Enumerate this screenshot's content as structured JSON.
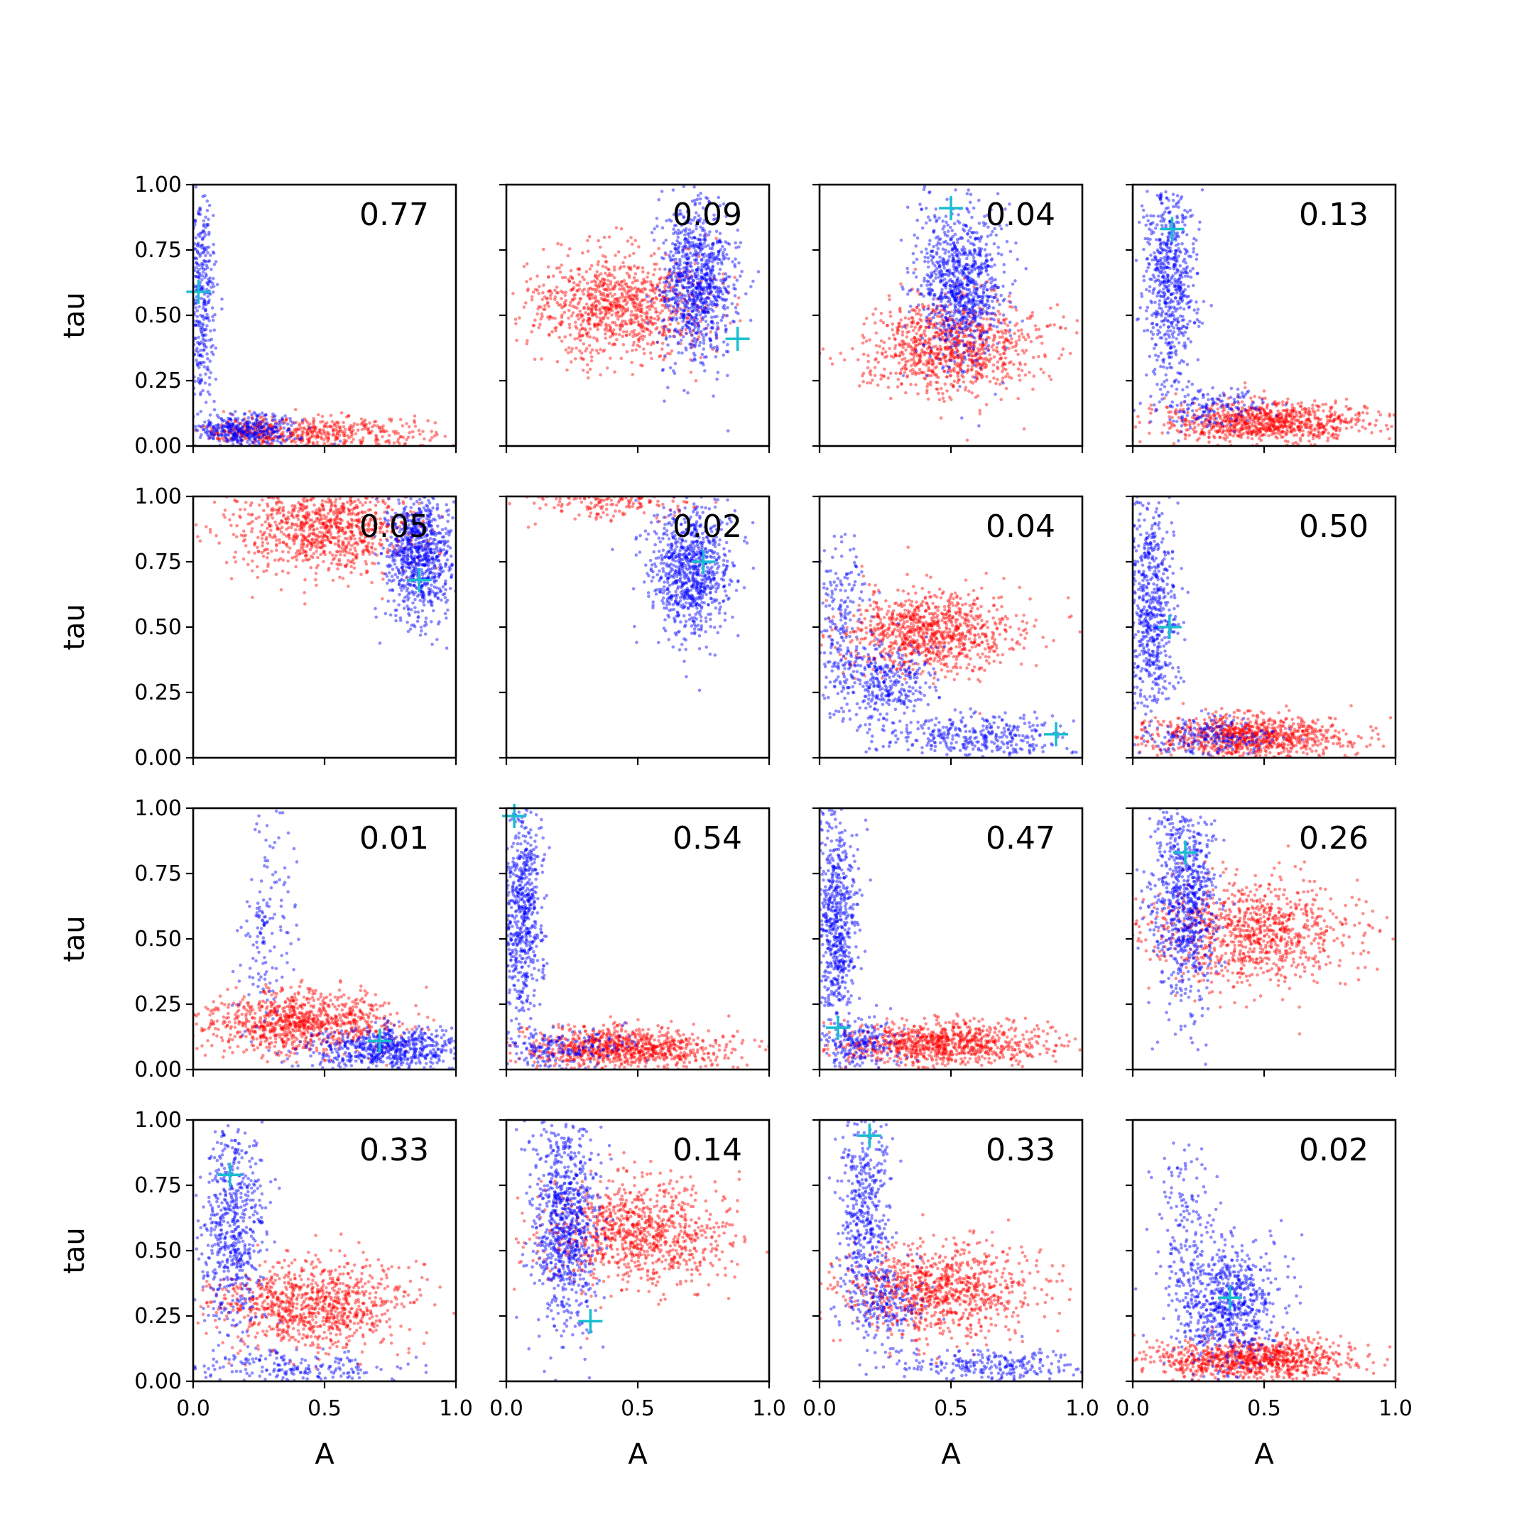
{
  "figure": {
    "colors": {
      "series_red": "#ff0000",
      "series_blue": "#0000ff",
      "marker": "#17becf",
      "frame": "#000000"
    }
  },
  "chart_data": [
    {
      "type": "scatter",
      "row": 0,
      "col": 0,
      "value_label": "0.77",
      "xlabel": "",
      "ylabel": "tau",
      "xlim": [
        0,
        1
      ],
      "ylim": [
        0,
        1
      ],
      "x_ticks": [],
      "y_ticks": [
        "0.00",
        "0.25",
        "0.50",
        "0.75",
        "1.00"
      ],
      "marker": [
        0.02,
        0.59
      ],
      "series": [
        {
          "color": "red",
          "clusters": [
            {
              "cx": 0.5,
              "cy": 0.05,
              "sx": 0.2,
              "sy": 0.03,
              "n": 420
            },
            {
              "cx": 0.2,
              "cy": 0.06,
              "sx": 0.08,
              "sy": 0.03,
              "n": 150
            }
          ]
        },
        {
          "color": "blue",
          "clusters": [
            {
              "cx": 0.03,
              "cy": 0.55,
              "sx": 0.03,
              "sy": 0.22,
              "n": 380
            },
            {
              "cx": 0.2,
              "cy": 0.06,
              "sx": 0.1,
              "sy": 0.03,
              "n": 380
            }
          ]
        }
      ]
    },
    {
      "type": "scatter",
      "row": 0,
      "col": 1,
      "value_label": "0.09",
      "xlabel": "",
      "ylabel": "",
      "xlim": [
        0,
        1
      ],
      "ylim": [
        0,
        1
      ],
      "x_ticks": [],
      "y_ticks": [],
      "marker": [
        0.88,
        0.41
      ],
      "series": [
        {
          "color": "red",
          "clusters": [
            {
              "cx": 0.42,
              "cy": 0.54,
              "sx": 0.17,
              "sy": 0.1,
              "n": 950
            }
          ]
        },
        {
          "color": "blue",
          "clusters": [
            {
              "cx": 0.72,
              "cy": 0.62,
              "sx": 0.07,
              "sy": 0.15,
              "n": 900
            }
          ]
        }
      ]
    },
    {
      "type": "scatter",
      "row": 0,
      "col": 2,
      "value_label": "0.04",
      "xlabel": "",
      "ylabel": "",
      "xlim": [
        0,
        1
      ],
      "ylim": [
        0,
        1
      ],
      "x_ticks": [],
      "y_ticks": [],
      "marker": [
        0.5,
        0.91
      ],
      "series": [
        {
          "color": "red",
          "clusters": [
            {
              "cx": 0.5,
              "cy": 0.38,
              "sx": 0.16,
              "sy": 0.09,
              "n": 950
            }
          ]
        },
        {
          "color": "blue",
          "clusters": [
            {
              "cx": 0.53,
              "cy": 0.62,
              "sx": 0.08,
              "sy": 0.15,
              "n": 900
            }
          ]
        }
      ]
    },
    {
      "type": "scatter",
      "row": 0,
      "col": 3,
      "value_label": "0.13",
      "xlabel": "",
      "ylabel": "",
      "xlim": [
        0,
        1
      ],
      "ylim": [
        0,
        1
      ],
      "x_ticks": [],
      "y_ticks": [],
      "marker": [
        0.15,
        0.83
      ],
      "series": [
        {
          "color": "red",
          "clusters": [
            {
              "cx": 0.5,
              "cy": 0.09,
              "sx": 0.2,
              "sy": 0.04,
              "n": 900
            }
          ]
        },
        {
          "color": "blue",
          "clusters": [
            {
              "cx": 0.14,
              "cy": 0.62,
              "sx": 0.05,
              "sy": 0.2,
              "n": 650
            },
            {
              "cx": 0.3,
              "cy": 0.15,
              "sx": 0.1,
              "sy": 0.04,
              "n": 150
            }
          ]
        }
      ]
    },
    {
      "type": "scatter",
      "row": 1,
      "col": 0,
      "value_label": "0.05",
      "xlabel": "",
      "ylabel": "tau",
      "xlim": [
        0,
        1
      ],
      "ylim": [
        0,
        1
      ],
      "x_ticks": [],
      "y_ticks": [
        "0.00",
        "0.25",
        "0.50",
        "0.75",
        "1.00"
      ],
      "marker": [
        0.86,
        0.68
      ],
      "series": [
        {
          "color": "red",
          "clusters": [
            {
              "cx": 0.5,
              "cy": 0.88,
              "sx": 0.17,
              "sy": 0.09,
              "n": 950
            }
          ]
        },
        {
          "color": "blue",
          "clusters": [
            {
              "cx": 0.86,
              "cy": 0.78,
              "sx": 0.06,
              "sy": 0.13,
              "n": 850
            }
          ]
        }
      ]
    },
    {
      "type": "scatter",
      "row": 1,
      "col": 1,
      "value_label": "0.02",
      "xlabel": "",
      "ylabel": "",
      "xlim": [
        0,
        1
      ],
      "ylim": [
        0,
        1
      ],
      "x_ticks": [],
      "y_ticks": [],
      "marker": [
        0.75,
        0.75
      ],
      "series": [
        {
          "color": "red",
          "clusters": [
            {
              "cx": 0.42,
              "cy": 1.0,
              "sx": 0.16,
              "sy": 0.05,
              "n": 300
            }
          ]
        },
        {
          "color": "blue",
          "clusters": [
            {
              "cx": 0.7,
              "cy": 0.72,
              "sx": 0.08,
              "sy": 0.12,
              "n": 850
            }
          ]
        }
      ]
    },
    {
      "type": "scatter",
      "row": 1,
      "col": 2,
      "value_label": "0.04",
      "xlabel": "",
      "ylabel": "",
      "xlim": [
        0,
        1
      ],
      "ylim": [
        0,
        1
      ],
      "x_ticks": [],
      "y_ticks": [],
      "marker": [
        0.9,
        0.09
      ],
      "series": [
        {
          "color": "red",
          "clusters": [
            {
              "cx": 0.42,
              "cy": 0.48,
              "sx": 0.17,
              "sy": 0.08,
              "n": 950
            }
          ]
        },
        {
          "color": "blue",
          "clusters": [
            {
              "cx": 0.08,
              "cy": 0.5,
              "sx": 0.05,
              "sy": 0.16,
              "n": 200
            },
            {
              "cx": 0.25,
              "cy": 0.28,
              "sx": 0.09,
              "sy": 0.08,
              "n": 350
            },
            {
              "cx": 0.6,
              "cy": 0.08,
              "sx": 0.18,
              "sy": 0.04,
              "n": 350
            }
          ]
        }
      ]
    },
    {
      "type": "scatter",
      "row": 1,
      "col": 3,
      "value_label": "0.50",
      "xlabel": "",
      "ylabel": "",
      "xlim": [
        0,
        1
      ],
      "ylim": [
        0,
        1
      ],
      "x_ticks": [],
      "y_ticks": [],
      "marker": [
        0.14,
        0.5
      ],
      "series": [
        {
          "color": "red",
          "clusters": [
            {
              "cx": 0.45,
              "cy": 0.08,
              "sx": 0.2,
              "sy": 0.04,
              "n": 900
            }
          ]
        },
        {
          "color": "blue",
          "clusters": [
            {
              "cx": 0.07,
              "cy": 0.55,
              "sx": 0.05,
              "sy": 0.22,
              "n": 650
            },
            {
              "cx": 0.3,
              "cy": 0.08,
              "sx": 0.12,
              "sy": 0.04,
              "n": 200
            }
          ]
        }
      ]
    },
    {
      "type": "scatter",
      "row": 2,
      "col": 0,
      "value_label": "0.01",
      "xlabel": "",
      "ylabel": "tau",
      "xlim": [
        0,
        1
      ],
      "ylim": [
        0,
        1
      ],
      "x_ticks": [],
      "y_ticks": [
        "0.00",
        "0.25",
        "0.50",
        "0.75",
        "1.00"
      ],
      "marker": [
        0.71,
        0.11
      ],
      "series": [
        {
          "color": "red",
          "clusters": [
            {
              "cx": 0.4,
              "cy": 0.18,
              "sx": 0.18,
              "sy": 0.06,
              "n": 950
            }
          ]
        },
        {
          "color": "blue",
          "clusters": [
            {
              "cx": 0.28,
              "cy": 0.55,
              "sx": 0.06,
              "sy": 0.18,
              "n": 150
            },
            {
              "cx": 0.75,
              "cy": 0.08,
              "sx": 0.14,
              "sy": 0.04,
              "n": 650
            }
          ]
        }
      ]
    },
    {
      "type": "scatter",
      "row": 2,
      "col": 1,
      "value_label": "0.54",
      "xlabel": "",
      "ylabel": "",
      "xlim": [
        0,
        1
      ],
      "ylim": [
        0,
        1
      ],
      "x_ticks": [],
      "y_ticks": [],
      "marker": [
        0.03,
        0.97
      ],
      "series": [
        {
          "color": "red",
          "clusters": [
            {
              "cx": 0.45,
              "cy": 0.08,
              "sx": 0.2,
              "sy": 0.04,
              "n": 900
            }
          ]
        },
        {
          "color": "blue",
          "clusters": [
            {
              "cx": 0.06,
              "cy": 0.6,
              "sx": 0.04,
              "sy": 0.22,
              "n": 650
            },
            {
              "cx": 0.2,
              "cy": 0.08,
              "sx": 0.12,
              "sy": 0.04,
              "n": 200
            }
          ]
        }
      ]
    },
    {
      "type": "scatter",
      "row": 2,
      "col": 2,
      "value_label": "0.47",
      "xlabel": "",
      "ylabel": "",
      "xlim": [
        0,
        1
      ],
      "ylim": [
        0,
        1
      ],
      "x_ticks": [],
      "y_ticks": [],
      "marker": [
        0.07,
        0.16
      ],
      "series": [
        {
          "color": "red",
          "clusters": [
            {
              "cx": 0.45,
              "cy": 0.1,
              "sx": 0.2,
              "sy": 0.04,
              "n": 900
            }
          ]
        },
        {
          "color": "blue",
          "clusters": [
            {
              "cx": 0.06,
              "cy": 0.55,
              "sx": 0.04,
              "sy": 0.22,
              "n": 650
            },
            {
              "cx": 0.15,
              "cy": 0.1,
              "sx": 0.08,
              "sy": 0.05,
              "n": 200
            }
          ]
        }
      ]
    },
    {
      "type": "scatter",
      "row": 2,
      "col": 3,
      "value_label": "0.26",
      "xlabel": "",
      "ylabel": "",
      "xlim": [
        0,
        1
      ],
      "ylim": [
        0,
        1
      ],
      "x_ticks": [],
      "y_ticks": [],
      "marker": [
        0.2,
        0.83
      ],
      "series": [
        {
          "color": "red",
          "clusters": [
            {
              "cx": 0.45,
              "cy": 0.52,
              "sx": 0.2,
              "sy": 0.1,
              "n": 950
            }
          ]
        },
        {
          "color": "blue",
          "clusters": [
            {
              "cx": 0.2,
              "cy": 0.65,
              "sx": 0.06,
              "sy": 0.2,
              "n": 800
            }
          ]
        }
      ]
    },
    {
      "type": "scatter",
      "row": 3,
      "col": 0,
      "value_label": "0.33",
      "xlabel": "A",
      "ylabel": "tau",
      "xlim": [
        0,
        1
      ],
      "ylim": [
        0,
        1
      ],
      "x_ticks": [
        "0.0",
        "0.5",
        "1.0"
      ],
      "y_ticks": [
        "0.00",
        "0.25",
        "0.50",
        "0.75",
        "1.00"
      ],
      "marker": [
        0.14,
        0.79
      ],
      "series": [
        {
          "color": "red",
          "clusters": [
            {
              "cx": 0.45,
              "cy": 0.29,
              "sx": 0.18,
              "sy": 0.08,
              "n": 950
            }
          ]
        },
        {
          "color": "blue",
          "clusters": [
            {
              "cx": 0.15,
              "cy": 0.6,
              "sx": 0.06,
              "sy": 0.2,
              "n": 600
            },
            {
              "cx": 0.4,
              "cy": 0.05,
              "sx": 0.2,
              "sy": 0.03,
              "n": 200
            }
          ]
        }
      ]
    },
    {
      "type": "scatter",
      "row": 3,
      "col": 1,
      "value_label": "0.14",
      "xlabel": "A",
      "ylabel": "",
      "xlim": [
        0,
        1
      ],
      "ylim": [
        0,
        1
      ],
      "x_ticks": [
        "0.0",
        "0.5",
        "1.0"
      ],
      "y_ticks": [],
      "marker": [
        0.32,
        0.23
      ],
      "series": [
        {
          "color": "red",
          "clusters": [
            {
              "cx": 0.5,
              "cy": 0.57,
              "sx": 0.18,
              "sy": 0.1,
              "n": 950
            }
          ]
        },
        {
          "color": "blue",
          "clusters": [
            {
              "cx": 0.22,
              "cy": 0.62,
              "sx": 0.06,
              "sy": 0.2,
              "n": 850
            }
          ]
        }
      ]
    },
    {
      "type": "scatter",
      "row": 3,
      "col": 2,
      "value_label": "0.33",
      "xlabel": "A",
      "ylabel": "",
      "xlim": [
        0,
        1
      ],
      "ylim": [
        0,
        1
      ],
      "x_ticks": [
        "0.0",
        "0.5",
        "1.0"
      ],
      "y_ticks": [],
      "marker": [
        0.19,
        0.94
      ],
      "series": [
        {
          "color": "red",
          "clusters": [
            {
              "cx": 0.45,
              "cy": 0.35,
              "sx": 0.18,
              "sy": 0.09,
              "n": 950
            }
          ]
        },
        {
          "color": "blue",
          "clusters": [
            {
              "cx": 0.17,
              "cy": 0.65,
              "sx": 0.05,
              "sy": 0.2,
              "n": 450
            },
            {
              "cx": 0.25,
              "cy": 0.3,
              "sx": 0.08,
              "sy": 0.08,
              "n": 200
            },
            {
              "cx": 0.65,
              "cy": 0.06,
              "sx": 0.18,
              "sy": 0.03,
              "n": 250
            }
          ]
        }
      ]
    },
    {
      "type": "scatter",
      "row": 3,
      "col": 3,
      "value_label": "0.02",
      "xlabel": "A",
      "ylabel": "",
      "xlim": [
        0,
        1
      ],
      "ylim": [
        0,
        1
      ],
      "x_ticks": [
        "0.0",
        "0.5",
        "1.0"
      ],
      "y_ticks": [],
      "marker": [
        0.37,
        0.32
      ],
      "series": [
        {
          "color": "red",
          "clusters": [
            {
              "cx": 0.45,
              "cy": 0.08,
              "sx": 0.2,
              "sy": 0.04,
              "n": 950
            }
          ]
        },
        {
          "color": "blue",
          "clusters": [
            {
              "cx": 0.35,
              "cy": 0.3,
              "sx": 0.1,
              "sy": 0.12,
              "n": 750
            },
            {
              "cx": 0.2,
              "cy": 0.65,
              "sx": 0.06,
              "sy": 0.15,
              "n": 120
            }
          ]
        }
      ]
    }
  ]
}
